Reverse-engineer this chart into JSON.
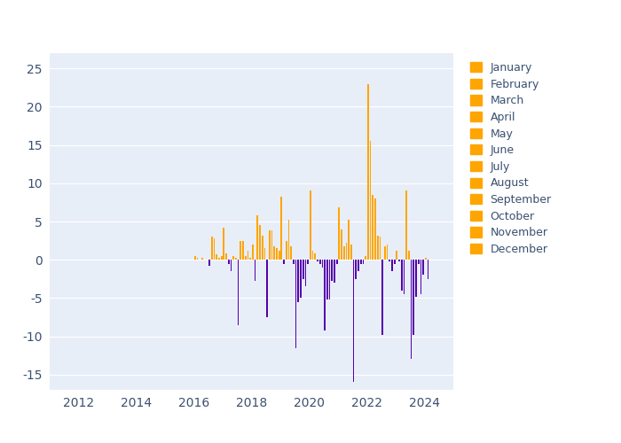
{
  "months": [
    "January",
    "February",
    "March",
    "April",
    "May",
    "June",
    "July",
    "August",
    "September",
    "October",
    "November",
    "December"
  ],
  "bar_color_positive": "#FFA500",
  "bar_color_negative": "#5500AA",
  "legend_color": "#FFA500",
  "axes_facecolor": "#E8EEF8",
  "fig_facecolor": "#FFFFFF",
  "xlim": [
    2011,
    2025
  ],
  "ylim": [
    -17,
    27
  ],
  "yticks": [
    -15,
    -10,
    -5,
    0,
    5,
    10,
    15,
    20,
    25
  ],
  "xticks": [
    2012,
    2014,
    2016,
    2018,
    2020,
    2022,
    2024
  ],
  "tick_color": "#3A5070",
  "tick_fontsize": 10,
  "legend_fontsize": 9,
  "bar_width": 0.055,
  "data": [
    {
      "year": 2016,
      "month": 1,
      "value": 0.5
    },
    {
      "year": 2016,
      "month": 2,
      "value": 0.2
    },
    {
      "year": 2016,
      "month": 4,
      "value": 0.3
    },
    {
      "year": 2016,
      "month": 7,
      "value": -0.8
    },
    {
      "year": 2016,
      "month": 8,
      "value": 3.0
    },
    {
      "year": 2016,
      "month": 9,
      "value": 2.8
    },
    {
      "year": 2016,
      "month": 10,
      "value": 0.7
    },
    {
      "year": 2016,
      "month": 11,
      "value": 0.2
    },
    {
      "year": 2016,
      "month": 12,
      "value": 0.5
    },
    {
      "year": 2017,
      "month": 1,
      "value": 4.2
    },
    {
      "year": 2017,
      "month": 2,
      "value": 0.8
    },
    {
      "year": 2017,
      "month": 3,
      "value": -0.5
    },
    {
      "year": 2017,
      "month": 4,
      "value": -1.5
    },
    {
      "year": 2017,
      "month": 5,
      "value": 0.5
    },
    {
      "year": 2017,
      "month": 6,
      "value": 0.3
    },
    {
      "year": 2017,
      "month": 7,
      "value": -8.5
    },
    {
      "year": 2017,
      "month": 8,
      "value": 2.5
    },
    {
      "year": 2017,
      "month": 9,
      "value": 2.5
    },
    {
      "year": 2017,
      "month": 10,
      "value": 0.5
    },
    {
      "year": 2017,
      "month": 11,
      "value": 1.2
    },
    {
      "year": 2017,
      "month": 12,
      "value": 0.3
    },
    {
      "year": 2018,
      "month": 1,
      "value": 2.0
    },
    {
      "year": 2018,
      "month": 2,
      "value": -2.7
    },
    {
      "year": 2018,
      "month": 3,
      "value": 5.8
    },
    {
      "year": 2018,
      "month": 4,
      "value": 4.5
    },
    {
      "year": 2018,
      "month": 5,
      "value": 3.2
    },
    {
      "year": 2018,
      "month": 6,
      "value": 1.5
    },
    {
      "year": 2018,
      "month": 7,
      "value": -7.5
    },
    {
      "year": 2018,
      "month": 8,
      "value": 3.8
    },
    {
      "year": 2018,
      "month": 9,
      "value": 3.8
    },
    {
      "year": 2018,
      "month": 10,
      "value": 1.8
    },
    {
      "year": 2018,
      "month": 11,
      "value": 1.5
    },
    {
      "year": 2018,
      "month": 12,
      "value": 1.2
    },
    {
      "year": 2019,
      "month": 1,
      "value": 8.2
    },
    {
      "year": 2019,
      "month": 2,
      "value": -0.5
    },
    {
      "year": 2019,
      "month": 3,
      "value": 2.5
    },
    {
      "year": 2019,
      "month": 4,
      "value": 5.2
    },
    {
      "year": 2019,
      "month": 5,
      "value": 1.8
    },
    {
      "year": 2019,
      "month": 6,
      "value": -0.5
    },
    {
      "year": 2019,
      "month": 7,
      "value": -11.5
    },
    {
      "year": 2019,
      "month": 8,
      "value": -5.5
    },
    {
      "year": 2019,
      "month": 9,
      "value": -5.0
    },
    {
      "year": 2019,
      "month": 10,
      "value": -2.5
    },
    {
      "year": 2019,
      "month": 11,
      "value": -3.5
    },
    {
      "year": 2019,
      "month": 12,
      "value": -0.5
    },
    {
      "year": 2020,
      "month": 1,
      "value": 9.0
    },
    {
      "year": 2020,
      "month": 2,
      "value": 1.2
    },
    {
      "year": 2020,
      "month": 3,
      "value": 0.8
    },
    {
      "year": 2020,
      "month": 4,
      "value": -0.2
    },
    {
      "year": 2020,
      "month": 5,
      "value": -0.5
    },
    {
      "year": 2020,
      "month": 6,
      "value": -1.0
    },
    {
      "year": 2020,
      "month": 7,
      "value": -9.2
    },
    {
      "year": 2020,
      "month": 8,
      "value": -5.2
    },
    {
      "year": 2020,
      "month": 9,
      "value": -5.2
    },
    {
      "year": 2020,
      "month": 10,
      "value": -2.8
    },
    {
      "year": 2020,
      "month": 11,
      "value": -3.0
    },
    {
      "year": 2020,
      "month": 12,
      "value": -0.5
    },
    {
      "year": 2021,
      "month": 1,
      "value": 6.8
    },
    {
      "year": 2021,
      "month": 2,
      "value": 4.0
    },
    {
      "year": 2021,
      "month": 3,
      "value": 1.8
    },
    {
      "year": 2021,
      "month": 4,
      "value": 2.2
    },
    {
      "year": 2021,
      "month": 5,
      "value": 5.2
    },
    {
      "year": 2021,
      "month": 6,
      "value": 2.0
    },
    {
      "year": 2021,
      "month": 7,
      "value": -16.0
    },
    {
      "year": 2021,
      "month": 8,
      "value": -2.5
    },
    {
      "year": 2021,
      "month": 9,
      "value": -1.5
    },
    {
      "year": 2021,
      "month": 10,
      "value": -0.5
    },
    {
      "year": 2021,
      "month": 11,
      "value": -0.5
    },
    {
      "year": 2021,
      "month": 12,
      "value": 0.5
    },
    {
      "year": 2022,
      "month": 1,
      "value": 23.0
    },
    {
      "year": 2022,
      "month": 2,
      "value": 15.5
    },
    {
      "year": 2022,
      "month": 3,
      "value": 8.5
    },
    {
      "year": 2022,
      "month": 4,
      "value": 8.0
    },
    {
      "year": 2022,
      "month": 5,
      "value": 3.2
    },
    {
      "year": 2022,
      "month": 6,
      "value": 3.0
    },
    {
      "year": 2022,
      "month": 7,
      "value": -9.8
    },
    {
      "year": 2022,
      "month": 8,
      "value": 1.8
    },
    {
      "year": 2022,
      "month": 9,
      "value": 2.0
    },
    {
      "year": 2022,
      "month": 10,
      "value": -0.2
    },
    {
      "year": 2022,
      "month": 11,
      "value": -1.5
    },
    {
      "year": 2022,
      "month": 12,
      "value": -0.5
    },
    {
      "year": 2023,
      "month": 1,
      "value": 1.2
    },
    {
      "year": 2023,
      "month": 2,
      "value": -0.2
    },
    {
      "year": 2023,
      "month": 3,
      "value": -4.0
    },
    {
      "year": 2023,
      "month": 4,
      "value": -4.5
    },
    {
      "year": 2023,
      "month": 5,
      "value": 9.0
    },
    {
      "year": 2023,
      "month": 6,
      "value": 1.2
    },
    {
      "year": 2023,
      "month": 7,
      "value": -13.0
    },
    {
      "year": 2023,
      "month": 8,
      "value": -9.8
    },
    {
      "year": 2023,
      "month": 9,
      "value": -4.8
    },
    {
      "year": 2023,
      "month": 10,
      "value": -0.5
    },
    {
      "year": 2023,
      "month": 11,
      "value": -4.5
    },
    {
      "year": 2023,
      "month": 12,
      "value": -2.0
    },
    {
      "year": 2024,
      "month": 1,
      "value": 0.2
    },
    {
      "year": 2024,
      "month": 2,
      "value": -2.5
    }
  ]
}
